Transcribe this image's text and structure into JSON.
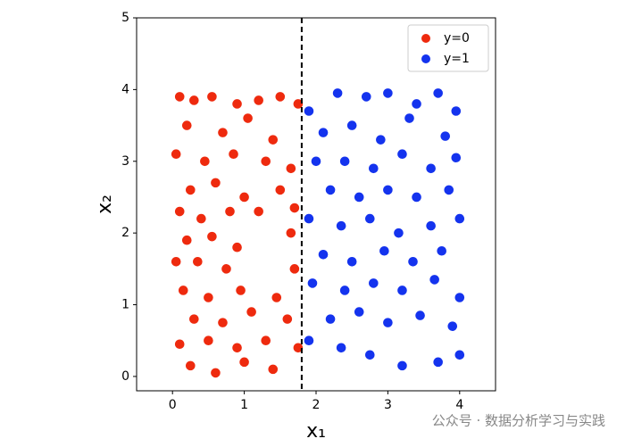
{
  "chart_data": {
    "type": "scatter",
    "xlabel": "x₁",
    "ylabel": "x₂",
    "xlim": [
      -0.5,
      4.5
    ],
    "ylim": [
      -0.2,
      5
    ],
    "xticks": [
      0,
      1,
      2,
      3,
      4
    ],
    "yticks": [
      0,
      1,
      2,
      3,
      4,
      5
    ],
    "vline": 1.8,
    "legend": "upper right",
    "watermark": "公众号 · 数据分析学习与实践",
    "series": [
      {
        "name": "y=0",
        "color": "#ee2a0e",
        "x": [
          0.1,
          0.3,
          0.55,
          0.9,
          1.2,
          1.5,
          1.75,
          0.2,
          0.7,
          1.05,
          1.4,
          0.45,
          0.05,
          0.85,
          1.3,
          1.65,
          0.25,
          0.6,
          1.0,
          1.5,
          0.1,
          0.4,
          0.8,
          1.2,
          1.7,
          0.2,
          0.55,
          0.9,
          1.65,
          0.05,
          0.35,
          0.75,
          1.7,
          0.15,
          0.5,
          0.95,
          1.45,
          0.3,
          0.7,
          1.1,
          1.6,
          0.1,
          0.5,
          0.9,
          1.3,
          0.25,
          0.6,
          1.0,
          1.4,
          1.75
        ],
        "values": [
          3.9,
          3.85,
          3.9,
          3.8,
          3.85,
          3.9,
          3.8,
          3.5,
          3.4,
          3.6,
          3.3,
          3.0,
          3.1,
          3.1,
          3.0,
          2.9,
          2.6,
          2.7,
          2.5,
          2.6,
          2.3,
          2.2,
          2.3,
          2.3,
          2.35,
          1.9,
          1.95,
          1.8,
          2.0,
          1.6,
          1.6,
          1.5,
          1.5,
          1.2,
          1.1,
          1.2,
          1.1,
          0.8,
          0.75,
          0.9,
          0.8,
          0.45,
          0.5,
          0.4,
          0.5,
          0.15,
          0.05,
          0.2,
          0.1,
          0.4
        ]
      },
      {
        "name": "y=1",
        "color": "#1433ee",
        "x": [
          1.9,
          2.3,
          2.7,
          3.0,
          3.4,
          3.7,
          3.95,
          2.1,
          2.5,
          2.9,
          3.3,
          3.8,
          2.0,
          2.4,
          2.8,
          3.2,
          3.6,
          3.95,
          2.2,
          2.6,
          3.0,
          3.4,
          3.85,
          1.9,
          2.35,
          2.75,
          3.15,
          3.6,
          4.0,
          2.1,
          2.5,
          2.95,
          3.35,
          3.75,
          1.95,
          2.4,
          2.8,
          3.2,
          3.65,
          4.0,
          2.2,
          2.6,
          3.0,
          3.45,
          3.9,
          1.9,
          2.35,
          2.75,
          3.2,
          3.7,
          4.0
        ],
        "values": [
          3.7,
          3.95,
          3.9,
          3.95,
          3.8,
          3.95,
          3.7,
          3.4,
          3.5,
          3.3,
          3.6,
          3.35,
          3.0,
          3.0,
          2.9,
          3.1,
          2.9,
          3.05,
          2.6,
          2.5,
          2.6,
          2.5,
          2.6,
          2.2,
          2.1,
          2.2,
          2.0,
          2.1,
          2.2,
          1.7,
          1.6,
          1.75,
          1.6,
          1.75,
          1.3,
          1.2,
          1.3,
          1.2,
          1.35,
          1.1,
          0.8,
          0.9,
          0.75,
          0.85,
          0.7,
          0.5,
          0.4,
          0.3,
          0.15,
          0.2,
          0.3
        ]
      }
    ]
  }
}
